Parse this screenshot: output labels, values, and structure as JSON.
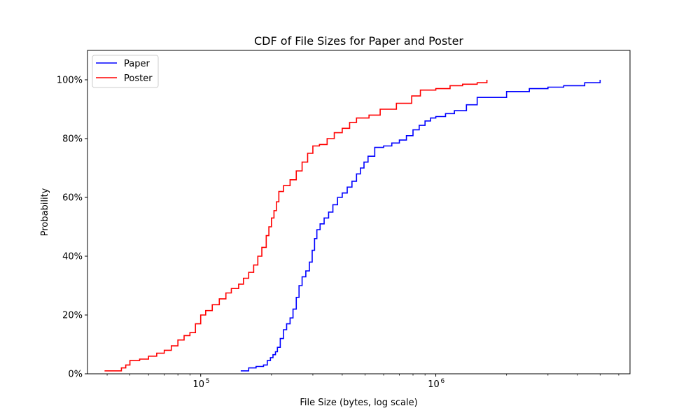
{
  "chart_data": {
    "type": "line",
    "title": "CDF of File Sizes for Paper and Poster",
    "xlabel": "File Size (bytes, log scale)",
    "ylabel": "Probability",
    "xscale": "log",
    "xlim": [
      33000,
      6700000
    ],
    "ylim": [
      0,
      1.1
    ],
    "x_ticks": [
      100000,
      1000000
    ],
    "x_tick_labels": [
      {
        "base": "10",
        "exp": "5"
      },
      {
        "base": "10",
        "exp": "6"
      }
    ],
    "y_ticks": [
      0,
      0.2,
      0.4,
      0.6,
      0.8,
      1.0
    ],
    "y_tick_labels": [
      "0%",
      "20%",
      "40%",
      "60%",
      "80%",
      "100%"
    ],
    "grid": false,
    "legend_position": "top-left",
    "series": [
      {
        "name": "Paper",
        "color": "#0000ff",
        "x": [
          148000,
          160000,
          172000,
          185000,
          192000,
          198000,
          203000,
          208000,
          212000,
          218000,
          225000,
          232000,
          240000,
          247000,
          255000,
          262000,
          270000,
          280000,
          290000,
          298000,
          305000,
          312000,
          322000,
          335000,
          350000,
          365000,
          382000,
          400000,
          420000,
          440000,
          460000,
          478000,
          495000,
          515000,
          550000,
          600000,
          650000,
          700000,
          750000,
          800000,
          850000,
          900000,
          950000,
          1000000,
          1100000,
          1200000,
          1350000,
          1500000,
          2000000,
          2500000,
          3000000,
          3500000,
          4300000,
          5000000
        ],
        "y": [
          0.01,
          0.02,
          0.025,
          0.03,
          0.045,
          0.055,
          0.065,
          0.075,
          0.09,
          0.12,
          0.15,
          0.17,
          0.19,
          0.22,
          0.26,
          0.3,
          0.33,
          0.35,
          0.38,
          0.42,
          0.46,
          0.49,
          0.51,
          0.53,
          0.55,
          0.575,
          0.6,
          0.615,
          0.635,
          0.655,
          0.68,
          0.7,
          0.72,
          0.74,
          0.77,
          0.775,
          0.785,
          0.795,
          0.81,
          0.83,
          0.845,
          0.86,
          0.87,
          0.875,
          0.885,
          0.895,
          0.915,
          0.94,
          0.96,
          0.97,
          0.975,
          0.98,
          0.99,
          1.0
        ]
      },
      {
        "name": "Poster",
        "color": "#ff0000",
        "x": [
          39000,
          46000,
          48000,
          50000,
          55000,
          60000,
          65000,
          70000,
          75000,
          80000,
          85000,
          90000,
          95000,
          100000,
          105000,
          112000,
          120000,
          128000,
          135000,
          145000,
          152000,
          160000,
          168000,
          175000,
          182000,
          190000,
          195000,
          200000,
          205000,
          210000,
          215000,
          225000,
          240000,
          255000,
          270000,
          285000,
          300000,
          320000,
          345000,
          370000,
          400000,
          430000,
          460000,
          520000,
          580000,
          680000,
          790000,
          860000,
          1000000,
          1150000,
          1300000,
          1500000,
          1650000
        ],
        "y": [
          0.01,
          0.02,
          0.03,
          0.045,
          0.05,
          0.06,
          0.07,
          0.08,
          0.095,
          0.115,
          0.13,
          0.14,
          0.17,
          0.2,
          0.215,
          0.235,
          0.255,
          0.275,
          0.29,
          0.305,
          0.325,
          0.345,
          0.37,
          0.4,
          0.43,
          0.47,
          0.5,
          0.53,
          0.555,
          0.585,
          0.62,
          0.64,
          0.66,
          0.69,
          0.72,
          0.75,
          0.775,
          0.78,
          0.8,
          0.82,
          0.835,
          0.855,
          0.87,
          0.88,
          0.9,
          0.92,
          0.945,
          0.965,
          0.97,
          0.98,
          0.985,
          0.99,
          1.0
        ]
      }
    ]
  }
}
